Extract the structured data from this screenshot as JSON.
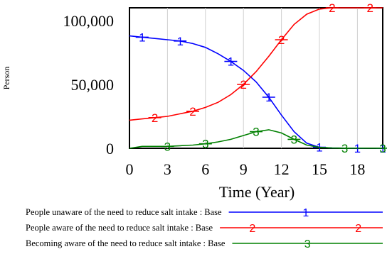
{
  "chart_data": {
    "type": "line",
    "xlabel": "Time (Year)",
    "ylabel": "Person",
    "xlim": [
      0,
      20
    ],
    "ylim": [
      0,
      110000
    ],
    "x_ticks": [
      "0",
      "3",
      "6",
      "9",
      "12",
      "15",
      "18"
    ],
    "y_ticks": [
      "100,000",
      "50,000",
      "0"
    ],
    "series": [
      {
        "name": "People unaware of the need to reduce salt intake : Base",
        "marker": "1",
        "color": "#0000ff",
        "x": [
          0,
          1,
          2,
          3,
          4,
          5,
          6,
          7,
          8,
          9,
          10,
          11,
          12,
          13,
          14,
          15,
          16,
          17,
          18,
          19,
          20
        ],
        "y": [
          88000,
          87000,
          86000,
          85000,
          84000,
          82000,
          79000,
          74000,
          68000,
          61000,
          52000,
          40000,
          26000,
          13000,
          4000,
          800,
          200,
          100,
          100,
          100,
          100
        ],
        "marker_x": [
          1,
          4,
          8,
          11,
          15,
          18,
          20
        ]
      },
      {
        "name": "People aware of the need to reduce salt intake : Base",
        "marker": "2",
        "color": "#ff0000",
        "x": [
          0,
          1,
          2,
          3,
          4,
          5,
          6,
          7,
          8,
          9,
          10,
          11,
          12,
          13,
          14,
          15,
          16,
          17,
          18,
          19,
          20
        ],
        "y": [
          22000,
          23000,
          24000,
          25000,
          27000,
          29000,
          32000,
          36000,
          42000,
          50000,
          60000,
          72000,
          85000,
          97000,
          105000,
          109000,
          110000,
          110000,
          110000,
          110000,
          110000
        ],
        "marker_x": [
          2,
          5,
          9,
          12,
          16,
          19
        ]
      },
      {
        "name": "Becoming aware of the need to reduce salt intake : Base",
        "marker": "3",
        "color": "#008000",
        "x": [
          0,
          1,
          2,
          3,
          4,
          5,
          6,
          7,
          8,
          9,
          10,
          11,
          12,
          13,
          14,
          15,
          16,
          17,
          18,
          19,
          20
        ],
        "y": [
          0,
          1500,
          1500,
          1500,
          2000,
          2500,
          3500,
          5000,
          7000,
          10000,
          13000,
          14500,
          12000,
          7000,
          2500,
          700,
          200,
          100,
          100,
          100,
          100
        ],
        "marker_x": [
          3,
          6,
          10,
          13,
          17,
          20
        ]
      }
    ],
    "legend_position": "bottom"
  }
}
